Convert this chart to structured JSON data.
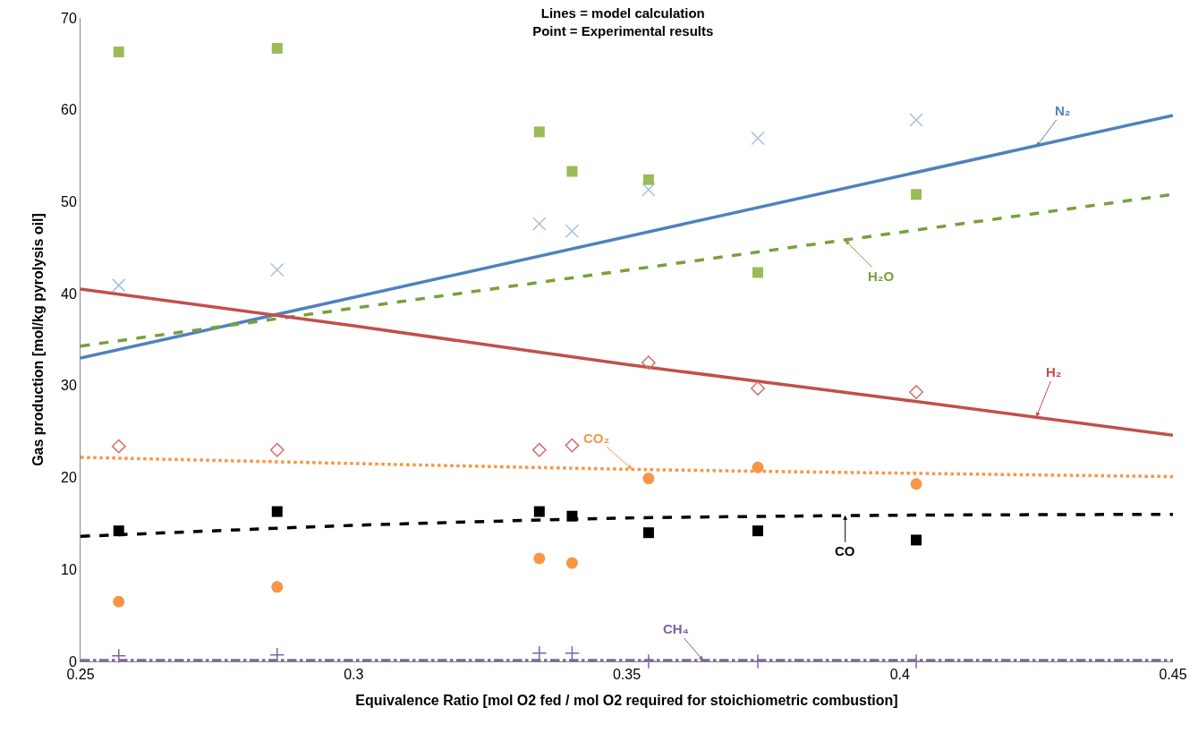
{
  "chart_data": {
    "type": "scatter",
    "title": "Lines = model calculation\nPoint = Experimental results",
    "xlabel": "Equivalence Ratio [mol O2 fed / mol O2 required for stoichiometric combustion]",
    "ylabel": "Gas production [mol/kg pyrolysis oil]",
    "xlim": [
      0.25,
      0.45
    ],
    "xticks": [
      0.25,
      0.3,
      0.35,
      0.4,
      0.45
    ],
    "ylim": [
      0,
      70
    ],
    "yticks": [
      0,
      10,
      20,
      30,
      40,
      50,
      60,
      70
    ],
    "series": [
      {
        "type": "line",
        "color": "#4f81bd",
        "line_style": "solid",
        "marker": "none",
        "x": [
          0.25,
          0.45
        ],
        "values": [
          33.0,
          59.4
        ]
      },
      {
        "type": "line",
        "color": "#77a03c",
        "line_style": "dashed",
        "marker": "none",
        "x": [
          0.25,
          0.45
        ],
        "values": [
          34.3,
          50.8
        ]
      },
      {
        "type": "line",
        "color": "#c0504d",
        "line_style": "solid",
        "marker": "none",
        "x": [
          0.25,
          0.3,
          0.35,
          0.4,
          0.45
        ],
        "values": [
          40.5,
          36.5,
          32.3,
          28.5,
          24.6
        ]
      },
      {
        "type": "line",
        "color": "#f79646",
        "line_style": "dotted",
        "marker": "none",
        "x": [
          0.25,
          0.35,
          0.45
        ],
        "values": [
          22.2,
          20.9,
          20.1
        ]
      },
      {
        "type": "line",
        "color": "#000000",
        "line_style": "dashed",
        "marker": "none",
        "x": [
          0.25,
          0.3,
          0.35,
          0.4,
          0.45
        ],
        "values": [
          13.6,
          14.8,
          15.6,
          15.9,
          16.0
        ]
      },
      {
        "type": "line",
        "color": "#8064a2",
        "line_style": "dashdot",
        "marker": "none",
        "x": [
          0.25,
          0.45
        ],
        "values": [
          0.1,
          0.1
        ]
      },
      {
        "color": "#9bbb59",
        "marker": "square",
        "x": [
          0.257,
          0.286,
          0.334,
          0.34,
          0.354,
          0.374,
          0.403
        ],
        "values": [
          66.3,
          66.7,
          57.6,
          53.3,
          52.4,
          42.3,
          50.8
        ]
      },
      {
        "color": "#a9bfdf",
        "marker": "x",
        "x": [
          0.257,
          0.286,
          0.334,
          0.34,
          0.354,
          0.374,
          0.403
        ],
        "values": [
          40.9,
          42.6,
          47.6,
          46.8,
          51.3,
          56.9,
          58.9
        ]
      },
      {
        "color": "#d06f6c",
        "marker": "diamond",
        "x": [
          0.257,
          0.286,
          0.334,
          0.34,
          0.354,
          0.374,
          0.403
        ],
        "values": [
          23.4,
          23.0,
          23.0,
          23.5,
          32.5,
          29.7,
          29.3
        ]
      },
      {
        "color": "#f79646",
        "marker": "circle",
        "x": [
          0.257,
          0.286,
          0.334,
          0.34,
          0.354,
          0.374,
          0.403
        ],
        "values": [
          6.5,
          8.1,
          11.2,
          10.7,
          19.9,
          21.1,
          19.3
        ]
      },
      {
        "color": "#000000",
        "marker": "square",
        "x": [
          0.257,
          0.286,
          0.334,
          0.34,
          0.354,
          0.374,
          0.403
        ],
        "values": [
          14.2,
          16.3,
          16.3,
          15.8,
          14.0,
          14.2,
          13.2
        ]
      },
      {
        "color": "#8064a2",
        "marker": "cross",
        "x": [
          0.257,
          0.286,
          0.334,
          0.34,
          0.354,
          0.374,
          0.403
        ],
        "values": [
          0.6,
          0.7,
          0.9,
          0.9,
          0,
          0,
          0
        ]
      }
    ],
    "annotations": [
      {
        "text": "N₂",
        "x": 0.425,
        "y": 56.0
      },
      {
        "text": "H₂O",
        "x": 0.39,
        "y": 45.8
      },
      {
        "text": "H₂",
        "x": 0.425,
        "y": 26.6
      },
      {
        "text": "CO₂",
        "x": 0.351,
        "y": 20.9
      },
      {
        "text": "CO",
        "x": 0.39,
        "y": 15.9
      },
      {
        "text": "CH₄",
        "x": 0.364,
        "y": 0.1
      }
    ]
  }
}
